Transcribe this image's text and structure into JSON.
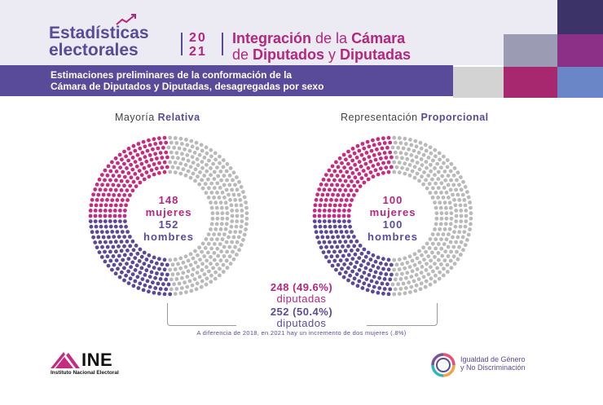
{
  "header": {
    "title_line1": "Estadísticas",
    "title_line2": "electorales",
    "year_top": "20",
    "year_bottom": "21",
    "subtitle_line1_a": "Integración",
    "subtitle_line1_b": " de la ",
    "subtitle_line1_c": "Cámara",
    "subtitle_line2_a": "de ",
    "subtitle_line2_b": "Diputados",
    "subtitle_line2_c": " y ",
    "subtitle_line2_d": "Diputadas"
  },
  "banner": {
    "line1": "Estimaciones preliminares de la conformación de la",
    "line2": "Cámara de Diputados y Diputadas, desagregadas por sexo"
  },
  "colors": {
    "women": "#c82a7f",
    "men": "#5b4899",
    "unfilled": "#b9b9b9",
    "accent": "#5a4b9a"
  },
  "chart_data": [
    {
      "type": "waffle-donut",
      "title_a": "Mayoría ",
      "title_b": "Relativa",
      "series": [
        {
          "name": "mujeres",
          "values": [
            148
          ]
        },
        {
          "name": "hombres",
          "values": [
            152
          ]
        }
      ],
      "women_value": "148",
      "women_label": "mujeres",
      "men_value": "152",
      "men_label": "hombres"
    },
    {
      "type": "waffle-donut",
      "title_a": "Representación ",
      "title_b": "Proporcional",
      "series": [
        {
          "name": "mujeres",
          "values": [
            100
          ]
        },
        {
          "name": "hombres",
          "values": [
            100
          ]
        }
      ],
      "women_value": "100",
      "women_label": "mujeres",
      "men_value": "100",
      "men_label": "hombres"
    }
  ],
  "totals": {
    "women_total": "248 (49.6%)",
    "women_label": "diputadas",
    "men_total": "252 (50.4%)",
    "men_label": "diputados"
  },
  "note": "A diferencia de 2018, en 2021 hay un incremento de dos mujeres (.8%)",
  "footer": {
    "ine_logo": "INE",
    "ine_sub": "Instituto Nacional Electoral",
    "igualdad_line1": "Igualdad de Género",
    "igualdad_line2": "y No Discriminación"
  }
}
